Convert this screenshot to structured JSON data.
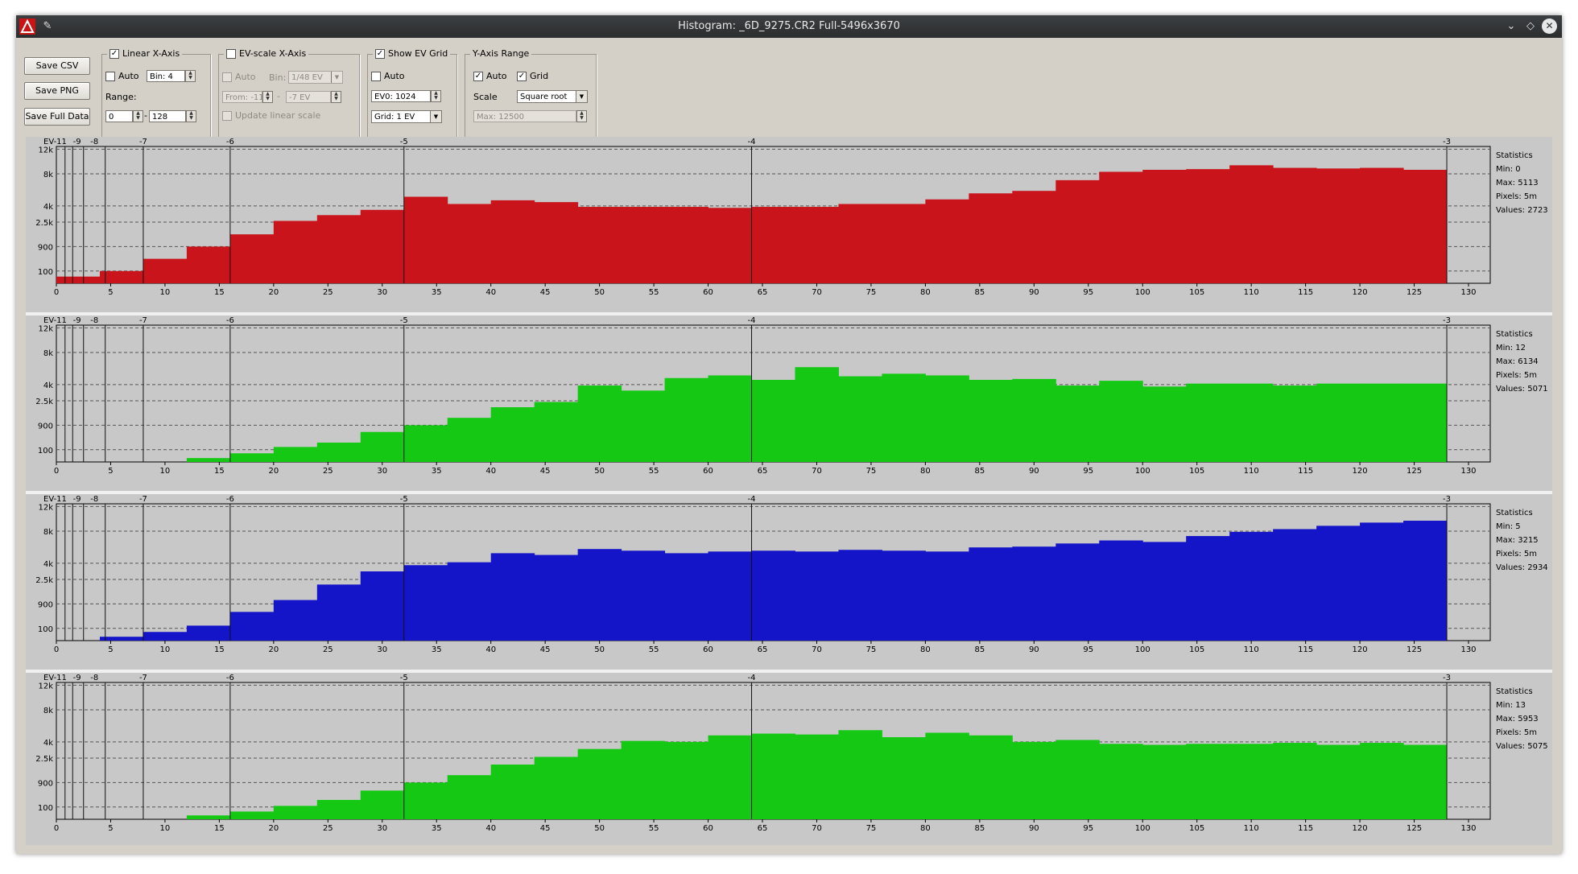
{
  "window": {
    "title": "Histogram: _6D_9275.CR2 Full-5496x3670"
  },
  "buttons": {
    "save_csv": "Save CSV",
    "save_png": "Save PNG",
    "save_full": "Save Full Data"
  },
  "linear_axis": {
    "title": "Linear X-Axis",
    "checked": true,
    "auto_label": "Auto",
    "bin_value": "Bin: 4",
    "range_label": "Range:",
    "range_from": "0",
    "range_dash": "-",
    "range_to": "128"
  },
  "ev_axis": {
    "title": "EV-scale X-Axis",
    "checked": false,
    "auto_label": "Auto",
    "bin_label": "Bin:",
    "bin_value": "1/48 EV",
    "from_value": "From: -11",
    "dash": "-",
    "to_value": "-7 EV",
    "update_label": "Update linear scale"
  },
  "ev_grid": {
    "title": "Show EV Grid",
    "checked": true,
    "auto_label": "Auto",
    "ev0_value": "EV0: 1024",
    "grid_value": "Grid: 1 EV"
  },
  "y_axis": {
    "title": "Y-Axis Range",
    "auto_label": "Auto",
    "auto_checked": true,
    "grid_label": "Grid",
    "grid_checked": true,
    "scale_label": "Scale",
    "scale_value": "Square root",
    "max_value": "Max: 12500"
  },
  "axes": {
    "y_ticks": [
      "12k",
      "8k",
      "4k",
      "2.5k",
      "900",
      "100"
    ],
    "x_ticks": [
      "0",
      "5",
      "10",
      "15",
      "20",
      "25",
      "30",
      "35",
      "40",
      "45",
      "50",
      "55",
      "60",
      "65",
      "70",
      "75",
      "80",
      "85",
      "90",
      "95",
      "100",
      "105",
      "110",
      "115",
      "120",
      "125",
      "130"
    ],
    "ev_ticks": [
      "EV-11",
      "-9",
      "-8",
      "-7",
      "-6",
      "-5",
      "-4",
      "-3"
    ]
  },
  "chart_data": [
    {
      "type": "bar",
      "channel": "red",
      "color": "#c8141a",
      "xlim": [
        0,
        132
      ],
      "x_bin": 4,
      "bin_starts": [
        0,
        4,
        8,
        12,
        16,
        20,
        24,
        28,
        32,
        36,
        40,
        44,
        48,
        52,
        56,
        60,
        64,
        68,
        72,
        76,
        80,
        84,
        88,
        92,
        96,
        100,
        104,
        108,
        112,
        116,
        120,
        124
      ],
      "values": [
        30,
        100,
        400,
        900,
        1600,
        2600,
        3100,
        3600,
        5000,
        4200,
        4600,
        4400,
        3900,
        3900,
        3900,
        3800,
        3900,
        3900,
        4200,
        4200,
        4700,
        5400,
        5700,
        7100,
        8300,
        8600,
        8700,
        9300,
        8900,
        8800,
        8900,
        8600
      ],
      "statistics": {
        "title": "Statistics",
        "min": "Min: 0",
        "max": "Max: 5113",
        "pixels": "Pixels: 5m",
        "values": "Values: 2723"
      }
    },
    {
      "type": "bar",
      "channel": "green",
      "color": "#14c814",
      "xlim": [
        0,
        132
      ],
      "x_bin": 4,
      "bin_starts": [
        0,
        4,
        8,
        12,
        16,
        20,
        24,
        28,
        32,
        36,
        40,
        44,
        48,
        52,
        56,
        60,
        64,
        68,
        72,
        76,
        80,
        84,
        88,
        92,
        96,
        100,
        104,
        108,
        112,
        116,
        120,
        124
      ],
      "values": [
        0,
        0,
        0,
        10,
        50,
        150,
        250,
        600,
        900,
        1300,
        2000,
        2400,
        3900,
        3400,
        4700,
        5000,
        4500,
        6000,
        4900,
        5200,
        5000,
        4500,
        4600,
        3900,
        4400,
        3800,
        4100,
        4100,
        3900,
        4100,
        4100,
        4100
      ],
      "statistics": {
        "title": "Statistics",
        "min": "Min: 12",
        "max": "Max: 6134",
        "pixels": "Pixels: 5m",
        "values": "Values: 5071"
      }
    },
    {
      "type": "bar",
      "channel": "blue",
      "color": "#1414c8",
      "xlim": [
        0,
        132
      ],
      "x_bin": 4,
      "bin_starts": [
        0,
        4,
        8,
        12,
        16,
        20,
        24,
        28,
        32,
        36,
        40,
        44,
        48,
        52,
        56,
        60,
        64,
        68,
        72,
        76,
        80,
        84,
        88,
        92,
        96,
        100,
        104,
        108,
        112,
        116,
        120,
        124
      ],
      "values": [
        0,
        10,
        50,
        150,
        550,
        1100,
        2100,
        3200,
        3800,
        4100,
        5100,
        4900,
        5600,
        5400,
        5100,
        5300,
        5400,
        5300,
        5500,
        5400,
        5300,
        5800,
        5900,
        6300,
        6700,
        6500,
        7300,
        7900,
        8300,
        8800,
        9300,
        9600
      ],
      "statistics": {
        "title": "Statistics",
        "min": "Min: 5",
        "max": "Max: 3215",
        "pixels": "Pixels: 5m",
        "values": "Values: 2934"
      }
    },
    {
      "type": "bar",
      "channel": "green",
      "color": "#14c814",
      "xlim": [
        0,
        132
      ],
      "x_bin": 4,
      "bin_starts": [
        0,
        4,
        8,
        12,
        16,
        20,
        24,
        28,
        32,
        36,
        40,
        44,
        48,
        52,
        56,
        60,
        64,
        68,
        72,
        76,
        80,
        84,
        88,
        92,
        96,
        100,
        104,
        108,
        112,
        116,
        120,
        124
      ],
      "values": [
        0,
        0,
        0,
        10,
        40,
        120,
        250,
        550,
        900,
        1300,
        2000,
        2600,
        3300,
        4100,
        4000,
        4700,
        4900,
        4800,
        5300,
        4500,
        5000,
        4700,
        4000,
        4200,
        3800,
        3700,
        3800,
        3800,
        3900,
        3700,
        3900,
        3700
      ],
      "statistics": {
        "title": "Statistics",
        "min": "Min: 13",
        "max": "Max: 5953",
        "pixels": "Pixels: 5m",
        "values": "Values: 5075"
      }
    }
  ]
}
